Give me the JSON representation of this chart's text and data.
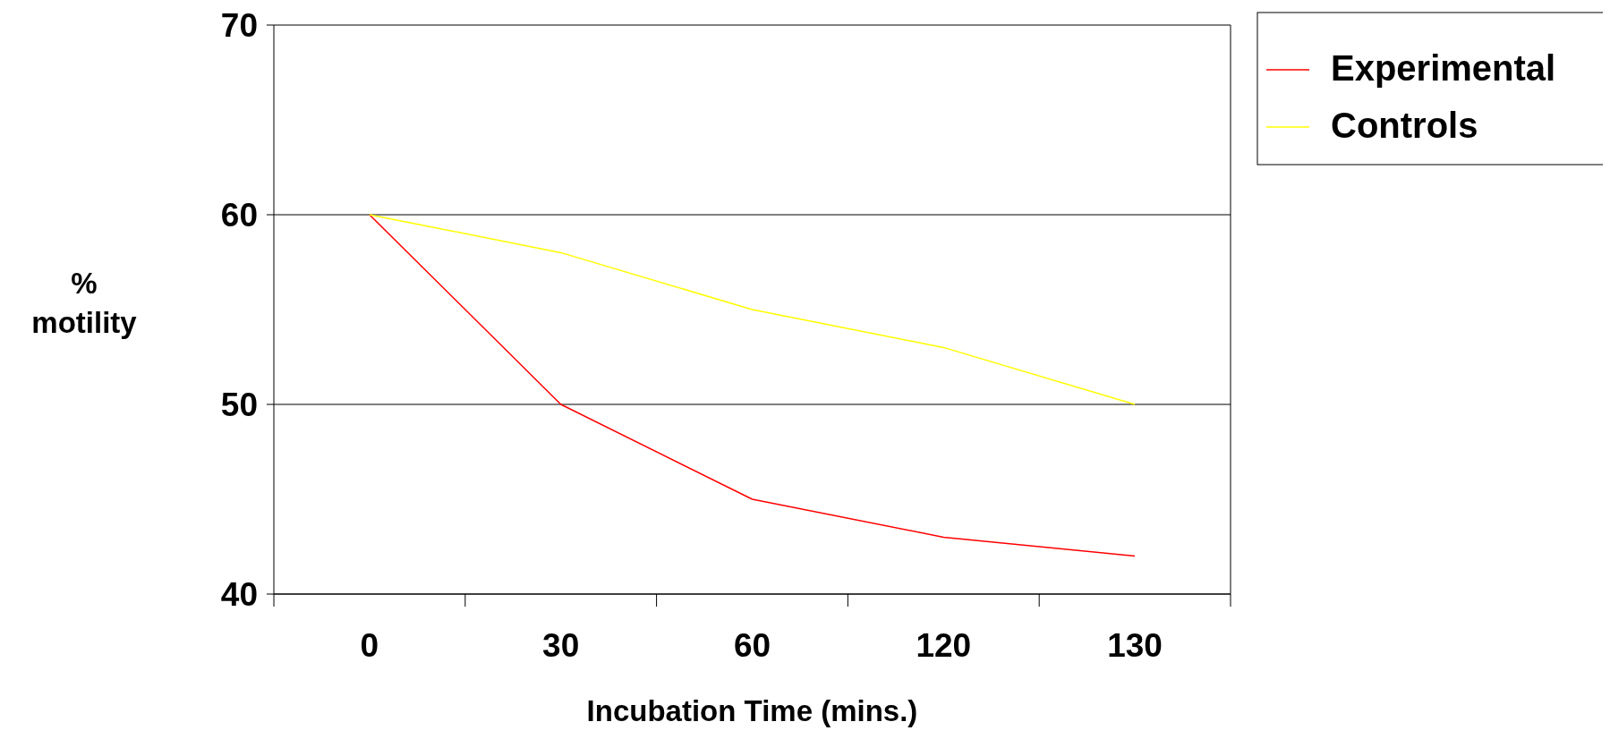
{
  "chart_data": {
    "type": "line",
    "xlabel": "Incubation Time (mins.)",
    "ylabel": "% motility",
    "categories": [
      "0",
      "30",
      "60",
      "120",
      "130"
    ],
    "series": [
      {
        "name": "Experimental",
        "color": "#ff0000",
        "values": [
          60,
          50,
          45,
          43,
          42
        ]
      },
      {
        "name": "Controls",
        "color": "#ffff00",
        "values": [
          60,
          58,
          55,
          53,
          50
        ]
      }
    ],
    "ylim": [
      40,
      70
    ],
    "yticks": [
      40,
      50,
      60,
      70
    ],
    "grid": "y",
    "legend": "top right",
    "marker": "none",
    "line_style": "solid"
  }
}
